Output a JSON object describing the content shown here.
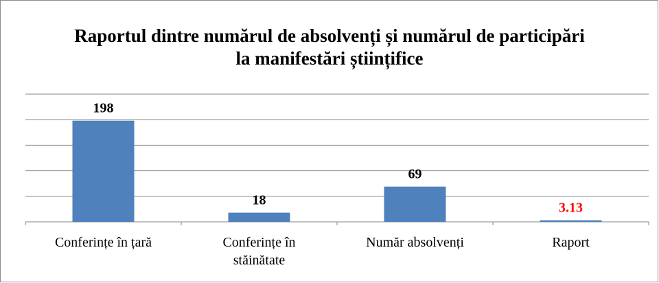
{
  "chart_data": {
    "type": "bar",
    "title": "Raportul dintre numărul de absolvenți și numărul de participări la manifestări științifice",
    "categories": [
      "Conferințe în țară",
      "Conferințe în stăinătate",
      "Număr absolvenți",
      "Raport"
    ],
    "values": [
      198,
      18,
      69,
      3.13
    ],
    "color": "#4f81bd",
    "label_colors": [
      "#000000",
      "#000000",
      "#000000",
      "#ff0000"
    ],
    "ylim": [
      0,
      250
    ],
    "yticks": [
      0,
      50,
      100,
      150,
      200,
      250
    ],
    "grid": true
  }
}
